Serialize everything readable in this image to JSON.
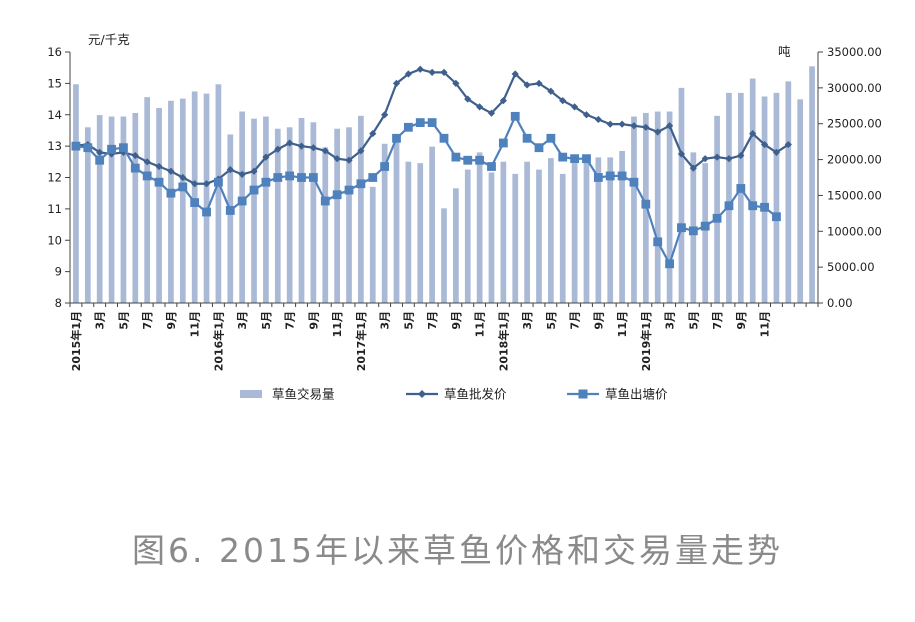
{
  "chart_data": {
    "type": "bar+line",
    "left_unit": "元/千克",
    "right_unit": "吨",
    "ylim_left": [
      8,
      16
    ],
    "ylim_right": [
      0,
      35000
    ],
    "left_ticks": [
      "8",
      "9",
      "10",
      "11",
      "12",
      "13",
      "14",
      "15",
      "16"
    ],
    "right_ticks": [
      "0.00",
      "5000.00",
      "10000.00",
      "15000.00",
      "20000.00",
      "25000.00",
      "30000.00",
      "35000.00"
    ],
    "x_tick_labels": [
      "2015年1月",
      "3月",
      "5月",
      "7月",
      "9月",
      "11月",
      "2016年1月",
      "3月",
      "5月",
      "7月",
      "9月",
      "11月",
      "2017年1月",
      "3月",
      "5月",
      "7月",
      "9月",
      "11月",
      "2018年1月",
      "3月",
      "5月",
      "7月",
      "9月",
      "11月",
      "2019年1月",
      "3月",
      "5月",
      "7月",
      "9月",
      "11月"
    ],
    "series": [
      {
        "name": "草鱼交易量",
        "kind": "bar",
        "axis": "right",
        "color": "#a9b9d6",
        "values": [
          30500,
          24500,
          26200,
          26000,
          26000,
          26500,
          28700,
          27200,
          28200,
          28500,
          29500,
          29200,
          30500,
          23500,
          26700,
          25700,
          26000,
          24300,
          24500,
          25800,
          25200,
          21700,
          24300,
          24500,
          26100,
          16200,
          22200,
          23500,
          19700,
          19500,
          21800,
          13200,
          16000,
          18600,
          21000,
          18200,
          19700,
          18000,
          19700,
          18600,
          20200,
          18000,
          19500,
          20000,
          20300,
          20300,
          21200,
          26000,
          26500,
          26700,
          26700,
          30000,
          21000,
          19500,
          26100,
          29300,
          29300,
          31300,
          28800,
          29300,
          30900,
          28400,
          33000
        ]
      },
      {
        "name": "草鱼批发价",
        "kind": "line",
        "axis": "left",
        "color": "#3f5f8c",
        "marker": "diamond",
        "values": [
          13.02,
          13.05,
          12.8,
          12.75,
          12.8,
          12.7,
          12.5,
          12.35,
          12.2,
          12.0,
          11.8,
          11.8,
          11.95,
          12.25,
          12.1,
          12.2,
          12.65,
          12.9,
          13.1,
          13.0,
          12.95,
          12.85,
          12.6,
          12.55,
          12.85,
          13.4,
          14.0,
          15.0,
          15.3,
          15.45,
          15.35,
          15.35,
          15.0,
          14.5,
          14.25,
          14.05,
          14.45,
          15.3,
          14.95,
          15.0,
          14.75,
          14.45,
          14.25,
          14.0,
          13.85,
          13.7,
          13.7,
          13.65,
          13.6,
          13.45,
          13.65,
          12.75,
          12.3,
          12.6,
          12.65,
          12.6,
          12.7,
          13.4,
          13.05,
          12.8,
          13.05
        ]
      },
      {
        "name": "草鱼出塘价",
        "kind": "line",
        "axis": "left",
        "color": "#4f81bd",
        "marker": "square",
        "values": [
          13.0,
          12.95,
          12.55,
          12.9,
          12.95,
          12.3,
          12.05,
          11.85,
          11.5,
          11.7,
          11.2,
          10.9,
          11.85,
          10.95,
          11.25,
          11.6,
          11.85,
          12.0,
          12.05,
          12.0,
          12.0,
          11.25,
          11.45,
          11.6,
          11.8,
          12.0,
          12.35,
          13.25,
          13.6,
          13.75,
          13.75,
          13.25,
          12.65,
          12.55,
          12.55,
          12.35,
          13.1,
          13.95,
          13.25,
          12.95,
          13.25,
          12.65,
          12.6,
          12.6,
          12.0,
          12.05,
          12.05,
          11.85,
          11.15,
          9.95,
          9.25,
          10.4,
          10.3,
          10.45,
          10.7,
          11.1,
          11.65,
          11.1,
          11.05,
          10.75
        ]
      }
    ]
  },
  "caption": "图6. 2015年以来草鱼价格和交易量走势"
}
